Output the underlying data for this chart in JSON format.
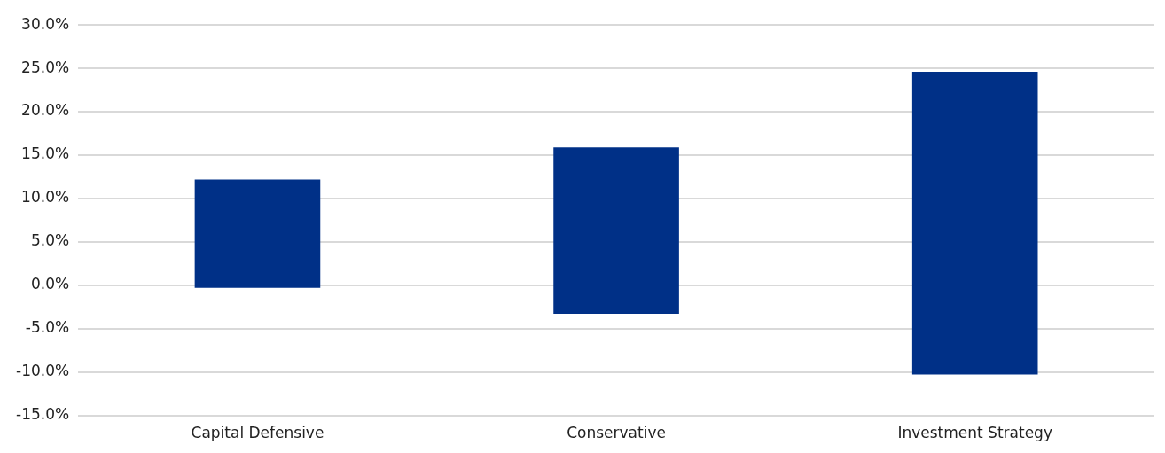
{
  "chart_data": {
    "type": "bar",
    "categories": [
      "Capital Defensive",
      "Conservative",
      "Investment Strategy"
    ],
    "values": [
      12.5,
      19.2,
      34.9
    ],
    "base": [
      -0.3,
      -3.3,
      -10.3
    ],
    "color": "#003087",
    "ylim": [
      -15,
      30
    ],
    "yticks": [
      {
        "value": -15,
        "label": "-15.0%"
      },
      {
        "value": -10,
        "label": "-10.0%"
      },
      {
        "value": -5,
        "label": "-5.0%"
      },
      {
        "value": 0,
        "label": "0.0%"
      },
      {
        "value": 5,
        "label": "5.0%"
      },
      {
        "value": 10,
        "label": "10.0%"
      },
      {
        "value": 15,
        "label": "15.0%"
      },
      {
        "value": 20,
        "label": "20.0%"
      },
      {
        "value": 25,
        "label": "25.0%"
      },
      {
        "value": 30,
        "label": "30.0%"
      }
    ],
    "grid": "y",
    "legend": false
  }
}
